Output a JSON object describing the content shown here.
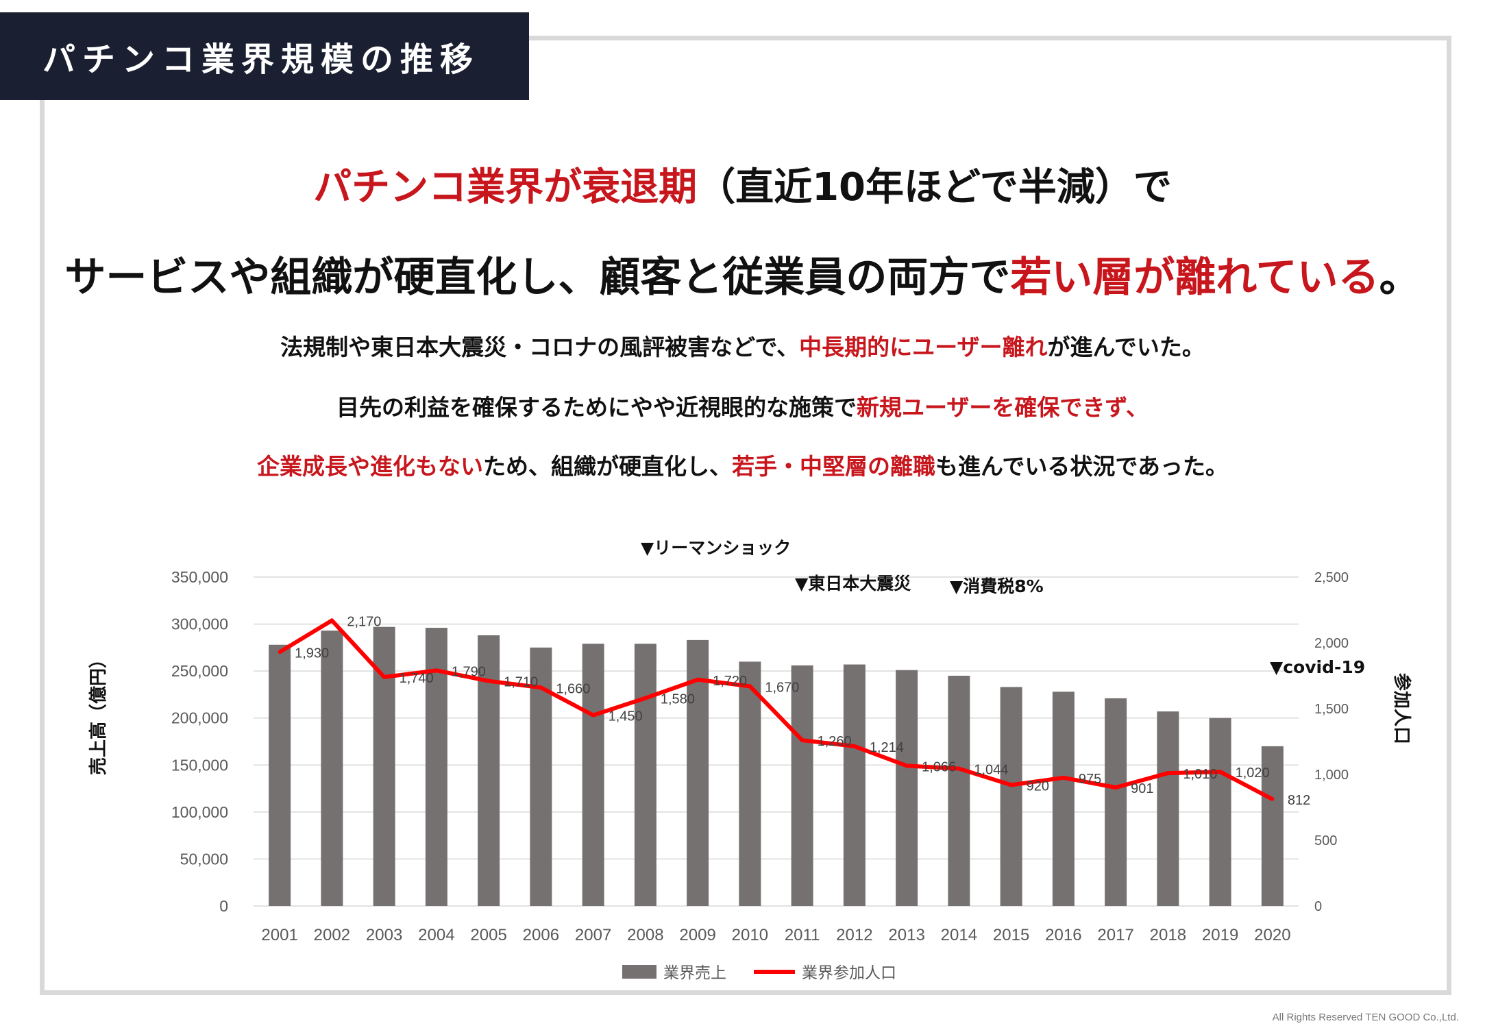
{
  "header": {
    "title": "パチンコ業界規模の推移"
  },
  "headline1": {
    "red": "パチンコ業界が衰退期",
    "rest": "（直近10年ほどで半減）で"
  },
  "headline2": {
    "pre": "サービスや組織が硬直化し、顧客と従業員の両方で",
    "red": "若い層が離れている",
    "post": "。"
  },
  "lines": {
    "l1_a": "法規制や東日本大震災・コロナの風評被害などで、",
    "l1_red": "中長期的にユーザー離れ",
    "l1_b": "が進んでいた。",
    "l2_a": "目先の利益を確保するためにやや近視眼的な施策で",
    "l2_red": "新規ユーザーを確保できず、",
    "l3_red1": "企業成長や進化もない",
    "l3_a": "ため、組織が硬直化し、",
    "l3_red2": "若手・中堅層の離職",
    "l3_b": "も進んでいる状況であった。"
  },
  "chart_data": {
    "type": "bar+line",
    "categories": [
      "2001",
      "2002",
      "2003",
      "2004",
      "2005",
      "2006",
      "2007",
      "2008",
      "2009",
      "2010",
      "2011",
      "2012",
      "2013",
      "2014",
      "2015",
      "2016",
      "2017",
      "2018",
      "2019",
      "2020"
    ],
    "series": [
      {
        "name": "業界売上",
        "type": "bar",
        "axis": "left",
        "color": "#767171",
        "values": [
          278000,
          293000,
          297000,
          296000,
          288000,
          275000,
          279000,
          279000,
          283000,
          260000,
          256000,
          257000,
          251000,
          245000,
          233000,
          228000,
          221000,
          207000,
          200000,
          170000
        ]
      },
      {
        "name": "業界参加人口",
        "type": "line",
        "axis": "right",
        "color": "#ff0000",
        "values": [
          1930,
          2170,
          1740,
          1790,
          1710,
          1660,
          1450,
          1580,
          1720,
          1670,
          1260,
          1214,
          1066,
          1044,
          920,
          975,
          901,
          1010,
          1020,
          812
        ]
      }
    ],
    "line_labels": [
      "1,930",
      "2,170",
      "1,740",
      "1,790",
      "1,710",
      "1,660",
      "1,450",
      "1,580",
      "1,720",
      "1,670",
      "1,260",
      "1,214",
      "1,066",
      "1,044",
      "920",
      "975",
      "901",
      "1,010",
      "1,020",
      "812"
    ],
    "ylabel": "売上高（億円）",
    "y2label": "参加人口",
    "ylim": [
      0,
      350000
    ],
    "y2lim": [
      0,
      2500
    ],
    "yticks": [
      "0",
      "50,000",
      "100,000",
      "150,000",
      "200,000",
      "250,000",
      "300,000",
      "350,000"
    ],
    "y2ticks": [
      "0",
      "500",
      "1,000",
      "1,500",
      "2,000",
      "2,500"
    ],
    "annotations": [
      {
        "text": "▼リーマンショック",
        "year": "2008"
      },
      {
        "text": "▼東日本大震災",
        "year": "2011"
      },
      {
        "text": "▼消費税8%",
        "year": "2014"
      },
      {
        "text": "▼covid-19",
        "year": "2020"
      }
    ],
    "legend_position": "bottom",
    "grid": true
  },
  "footer": {
    "copyright": "All Rights Reserved TEN GOOD Co.,Ltd."
  }
}
